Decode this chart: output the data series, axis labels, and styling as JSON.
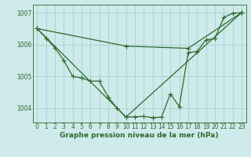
{
  "background_color": "#ceeaea",
  "grid_color": "#aad4d4",
  "line_color": "#2d6a2d",
  "xlabel": "Graphe pression niveau de la mer (hPa)",
  "ylim": [
    1003.55,
    1007.25
  ],
  "xlim": [
    -0.5,
    23.5
  ],
  "yticks": [
    1004,
    1005,
    1006,
    1007
  ],
  "xticks": [
    0,
    1,
    2,
    3,
    4,
    5,
    6,
    7,
    8,
    9,
    10,
    11,
    12,
    13,
    14,
    15,
    16,
    17,
    18,
    19,
    20,
    21,
    22,
    23
  ],
  "series1_x": [
    0,
    1,
    2,
    3,
    4,
    5,
    6,
    7,
    8,
    9,
    10,
    11,
    12,
    13,
    14,
    15,
    16,
    17,
    18,
    19,
    20,
    21,
    22,
    23
  ],
  "series1_y": [
    1006.5,
    1006.2,
    1005.9,
    1005.5,
    1005.0,
    1004.95,
    1004.85,
    1004.85,
    1004.35,
    1004.0,
    1003.72,
    1003.73,
    1003.74,
    1003.7,
    1003.72,
    1004.45,
    1004.05,
    1005.75,
    1005.78,
    1006.15,
    1006.18,
    1006.85,
    1006.98,
    1007.0
  ],
  "series2_x": [
    0,
    10,
    17,
    23
  ],
  "series2_y": [
    1006.5,
    1005.95,
    1005.88,
    1007.0
  ],
  "series3_x": [
    0,
    10,
    23
  ],
  "series3_y": [
    1006.5,
    1003.72,
    1007.0
  ],
  "title_fontsize": 6,
  "axis_fontsize": 5.5,
  "xlabel_fontsize": 6.5,
  "lw": 0.9,
  "ms": 2.2
}
